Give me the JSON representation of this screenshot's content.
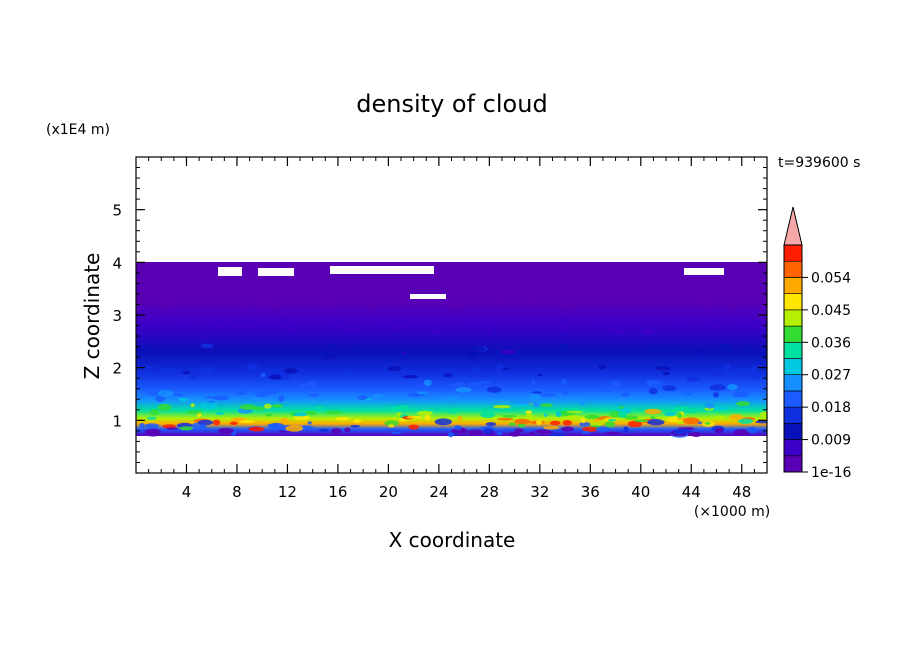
{
  "chart_data": {
    "type": "heatmap",
    "title": "density of cloud",
    "xlabel": "X coordinate",
    "ylabel": "Z coordinate",
    "x_unit": "(×1000 m)",
    "y_unit": "(x1E4 m)",
    "time_label": "t=939600 s",
    "xlim": [
      0,
      50
    ],
    "ylim": [
      0,
      6
    ],
    "x_ticks": [
      4,
      8,
      12,
      16,
      20,
      24,
      28,
      32,
      36,
      40,
      44,
      48
    ],
    "y_ticks": [
      1,
      2,
      3,
      4,
      5
    ],
    "x_tick_labels": [
      "4",
      "8",
      "12",
      "16",
      "20",
      "24",
      "28",
      "32",
      "36",
      "40",
      "44",
      "48"
    ],
    "y_tick_labels": [
      "1",
      "2",
      "3",
      "4",
      "5"
    ],
    "colorbar": {
      "labels": [
        "1e-16",
        "0.009",
        "0.018",
        "0.027",
        "0.036",
        "0.045",
        "0.054"
      ],
      "levels": 14,
      "colors": [
        "#5a00b4",
        "#3c00c8",
        "#0a10b8",
        "#1030e0",
        "#1a5cff",
        "#1690ff",
        "#00c8e0",
        "#00e0a0",
        "#32dc32",
        "#b4f000",
        "#ffe600",
        "#ffaa00",
        "#ff6400",
        "#ff1e00"
      ],
      "overflow_color": "#f4a8a8"
    },
    "profile": [
      {
        "z": 0.72,
        "value": 0.003
      },
      {
        "z": 0.85,
        "value": 0.018
      },
      {
        "z": 0.95,
        "value": 0.05
      },
      {
        "z": 1.05,
        "value": 0.044
      },
      {
        "z": 1.2,
        "value": 0.035
      },
      {
        "z": 1.4,
        "value": 0.024
      },
      {
        "z": 1.6,
        "value": 0.019
      },
      {
        "z": 1.9,
        "value": 0.015
      },
      {
        "z": 2.3,
        "value": 0.011
      },
      {
        "z": 2.8,
        "value": 0.006
      },
      {
        "z": 3.3,
        "value": 0.003
      },
      {
        "z": 3.9,
        "value": 0.001
      }
    ],
    "cloud_base": 0.72,
    "cloud_top": 4.0
  }
}
